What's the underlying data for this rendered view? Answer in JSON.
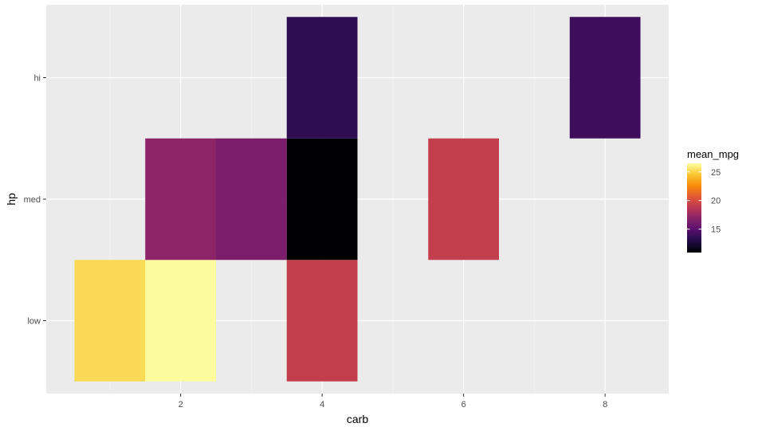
{
  "chart_data": {
    "type": "heatmap",
    "title": "",
    "xlabel": "carb",
    "ylabel": "hp",
    "x_ticks": [
      2,
      4,
      6,
      8
    ],
    "xlim": [
      0.1,
      8.9
    ],
    "y_categories": [
      "low",
      "med",
      "hi"
    ],
    "grid": true,
    "legend": {
      "title": "mean_mpg",
      "placement": "right",
      "ticks": [
        15,
        20,
        25
      ],
      "range": [
        10.9,
        26.5
      ],
      "colormap": "inferno"
    },
    "cells": [
      {
        "x": 1,
        "y": "low",
        "value": 25.2
      },
      {
        "x": 2,
        "y": "low",
        "value": 26.4
      },
      {
        "x": 4,
        "y": "low",
        "value": 19.2
      },
      {
        "x": 2,
        "y": "med",
        "value": 17.0
      },
      {
        "x": 3,
        "y": "med",
        "value": 16.3
      },
      {
        "x": 4,
        "y": "med",
        "value": 10.9
      },
      {
        "x": 6,
        "y": "med",
        "value": 19.2
      },
      {
        "x": 4,
        "y": "hi",
        "value": 13.5
      },
      {
        "x": 8,
        "y": "hi",
        "value": 14.0
      }
    ]
  }
}
